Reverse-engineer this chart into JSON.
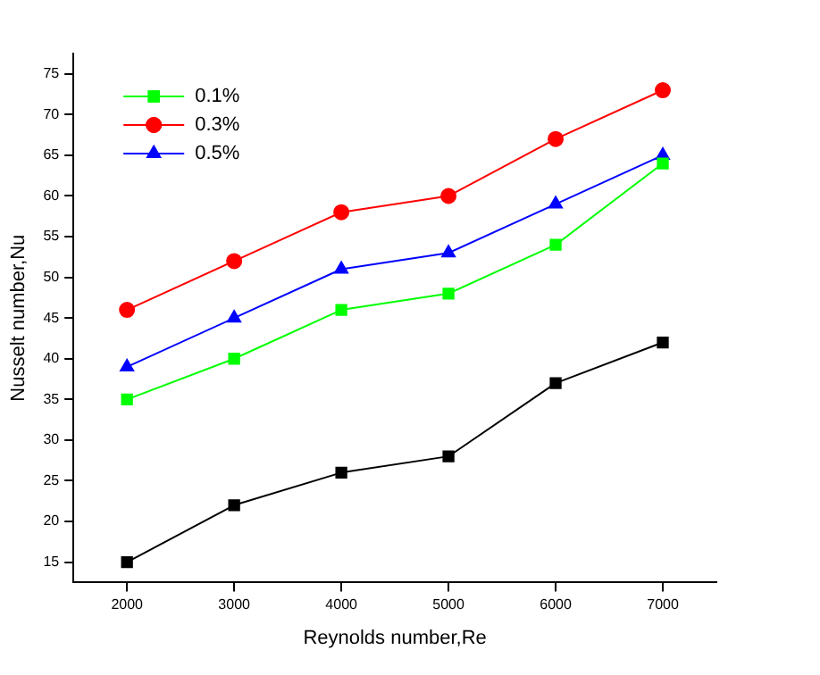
{
  "chart_data": {
    "type": "line",
    "xlabel": "Reynolds number,Re",
    "ylabel": "Nusselt number,Nu",
    "x": [
      2000,
      3000,
      4000,
      5000,
      6000,
      7000
    ],
    "xlim": [
      1500,
      7500
    ],
    "xticks": [
      2000,
      3000,
      4000,
      5000,
      6000,
      7000
    ],
    "ylim": [
      12.5,
      77.5
    ],
    "yticks": [
      15,
      20,
      25,
      30,
      35,
      40,
      45,
      50,
      55,
      60,
      65,
      70,
      75
    ],
    "grid": false,
    "legend": "top left",
    "series": [
      {
        "name": "0.1%",
        "color": "#00ff00",
        "marker": "square",
        "values": [
          35,
          40,
          46,
          48,
          54,
          64
        ]
      },
      {
        "name": "0.3%",
        "color": "#ff0000",
        "marker": "circle",
        "values": [
          46,
          52,
          58,
          60,
          67,
          73
        ]
      },
      {
        "name": "0.5%",
        "color": "#0000ff",
        "marker": "triangle",
        "values": [
          39,
          45,
          51,
          53,
          59,
          65
        ]
      },
      {
        "color": "#000000",
        "marker": "square",
        "values": [
          15,
          22,
          26,
          28,
          37,
          42
        ]
      }
    ]
  }
}
